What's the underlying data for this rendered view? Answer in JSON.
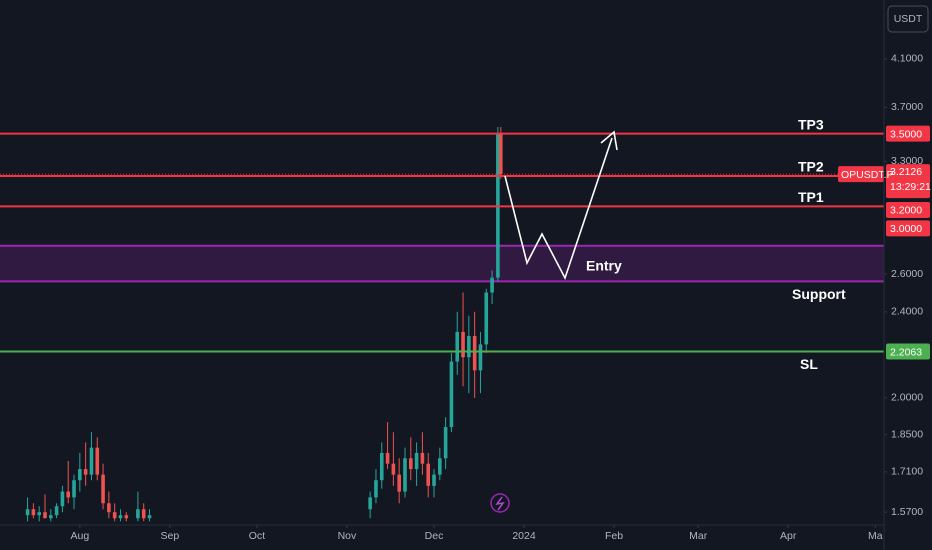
{
  "chart_data": {
    "type": "candlestick",
    "currency": "USDT",
    "symbol": "OPUSDT.P",
    "countdown": "13:29:21",
    "log_scale": true,
    "up_color": "#26a69a",
    "down_color": "#ef5350",
    "x": [
      -18,
      -16,
      -14,
      -12,
      -10,
      -8,
      -6,
      -4,
      -2,
      0,
      2,
      4,
      6,
      8,
      10,
      12,
      14,
      16,
      20,
      22,
      24,
      100,
      102,
      104,
      106,
      108,
      110,
      112,
      114,
      116,
      118,
      120,
      122,
      124,
      126,
      128,
      130,
      132,
      134,
      136,
      138,
      140,
      142,
      144,
      145
    ],
    "open": [
      1.56,
      1.58,
      1.56,
      1.57,
      1.55,
      1.56,
      1.59,
      1.64,
      1.62,
      1.68,
      1.72,
      1.7,
      1.8,
      1.7,
      1.6,
      1.57,
      1.55,
      1.56,
      1.55,
      1.58,
      1.55,
      1.58,
      1.62,
      1.68,
      1.78,
      1.74,
      1.7,
      1.64,
      1.76,
      1.72,
      1.78,
      1.74,
      1.66,
      1.7,
      1.76,
      1.88,
      2.16,
      2.3,
      2.18,
      2.28,
      2.12,
      2.24,
      2.5,
      2.58,
      3.5
    ],
    "high": [
      1.62,
      1.6,
      1.59,
      1.63,
      1.58,
      1.6,
      1.66,
      1.75,
      1.7,
      1.78,
      1.82,
      1.86,
      1.84,
      1.74,
      1.64,
      1.6,
      1.58,
      1.57,
      1.64,
      1.6,
      1.58,
      1.64,
      1.72,
      1.82,
      1.9,
      1.86,
      1.76,
      1.8,
      1.84,
      1.82,
      1.86,
      1.78,
      1.72,
      1.8,
      1.92,
      2.2,
      2.4,
      2.5,
      2.38,
      2.4,
      2.3,
      2.52,
      2.62,
      3.55,
      3.55
    ],
    "low": [
      1.54,
      1.55,
      1.54,
      1.55,
      1.54,
      1.55,
      1.57,
      1.6,
      1.58,
      1.64,
      1.66,
      1.68,
      1.68,
      1.58,
      1.55,
      1.54,
      1.54,
      1.54,
      1.54,
      1.54,
      1.54,
      1.55,
      1.6,
      1.65,
      1.72,
      1.66,
      1.6,
      1.62,
      1.68,
      1.66,
      1.7,
      1.62,
      1.62,
      1.68,
      1.72,
      1.86,
      2.1,
      2.05,
      2.02,
      2.0,
      2.02,
      2.2,
      2.44,
      2.56,
      3.18
    ],
    "close": [
      1.58,
      1.56,
      1.57,
      1.55,
      1.56,
      1.59,
      1.64,
      1.62,
      1.68,
      1.72,
      1.7,
      1.8,
      1.7,
      1.6,
      1.57,
      1.55,
      1.56,
      1.55,
      1.58,
      1.55,
      1.56,
      1.62,
      1.68,
      1.78,
      1.74,
      1.7,
      1.64,
      1.76,
      1.72,
      1.78,
      1.74,
      1.66,
      1.7,
      1.76,
      1.88,
      2.16,
      2.3,
      2.18,
      2.28,
      2.12,
      2.24,
      2.5,
      2.58,
      3.5,
      3.2126
    ],
    "xlim": [
      -27.5,
      277
    ],
    "xticks": [
      {
        "value": 0,
        "label": "Aug"
      },
      {
        "value": 31,
        "label": "Sep"
      },
      {
        "value": 61,
        "label": "Oct"
      },
      {
        "value": 92,
        "label": "Nov"
      },
      {
        "value": 122,
        "label": "Dec"
      },
      {
        "value": 153,
        "label": "2024"
      },
      {
        "value": 184,
        "label": "Feb"
      },
      {
        "value": 213,
        "label": "Mar"
      },
      {
        "value": 244,
        "label": "Apr"
      },
      {
        "value": 274,
        "label": "Ma"
      }
    ],
    "ylim": [
      1.528,
      4.645
    ],
    "yticks": [
      {
        "value": 4.1,
        "label": "4.1000"
      },
      {
        "value": 3.7,
        "label": "3.7000"
      },
      {
        "value": 3.3,
        "label": "3.3000"
      },
      {
        "value": 2.6,
        "label": "2.6000"
      },
      {
        "value": 2.4,
        "label": "2.4000"
      },
      {
        "value": 2.0,
        "label": "2.0000"
      },
      {
        "value": 1.85,
        "label": "1.8500"
      },
      {
        "value": 1.71,
        "label": "1.7100"
      },
      {
        "value": 1.57,
        "label": "1.5700"
      }
    ],
    "levels": [
      {
        "label": "TP3",
        "value": 3.5,
        "value_label": "3.5000",
        "color": "#f23645"
      },
      {
        "label": "TP2",
        "value": 3.2,
        "value_label": "3.2000",
        "color": "#f23645"
      },
      {
        "label": "TP1",
        "value": 3.0,
        "value_label": "3.0000",
        "color": "#f23645"
      },
      {
        "label": "SL",
        "value": 2.2063,
        "value_label": "2.2063",
        "color": "#4caf50"
      }
    ],
    "zone": {
      "label": "Entry",
      "sublabel": "Support",
      "top": 2.76,
      "bottom": 2.56,
      "color": "#9c27b0"
    },
    "current_price": {
      "value": 3.2126,
      "value_label": "3.2126"
    }
  }
}
